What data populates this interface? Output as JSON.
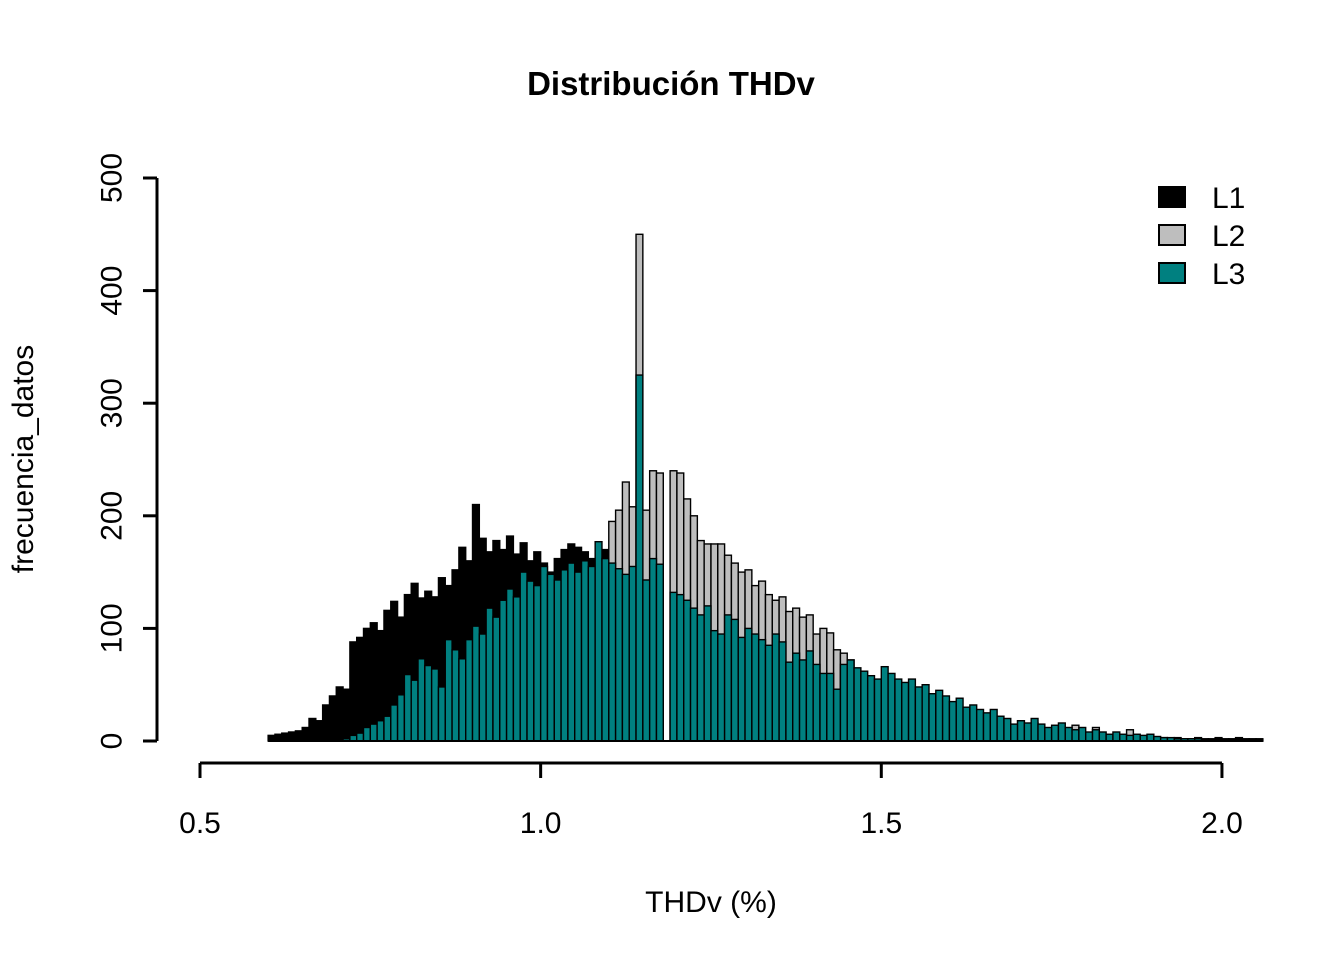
{
  "title": "Distribución THDv",
  "xlabel": "THDv (%)",
  "ylabel": "frecuencia_datos",
  "colors": {
    "l1": "#000000",
    "l2": "#BEBEBE",
    "l3": "#008080",
    "axis": "#000000",
    "background": "#FFFFFF"
  },
  "legend": [
    {
      "label": "L1",
      "color": "#000000"
    },
    {
      "label": "L2",
      "color": "#BEBEBE"
    },
    {
      "label": "L3",
      "color": "#008080"
    }
  ],
  "axes": {
    "x_ticks": [
      {
        "label": "0.5",
        "value": 0.5
      },
      {
        "label": "1.0",
        "value": 1.0
      },
      {
        "label": "1.5",
        "value": 1.5
      },
      {
        "label": "2.0",
        "value": 2.0
      }
    ],
    "y_ticks": [
      {
        "label": "0",
        "value": 0
      },
      {
        "label": "100",
        "value": 100
      },
      {
        "label": "200",
        "value": 200
      },
      {
        "label": "300",
        "value": 300
      },
      {
        "label": "400",
        "value": 400
      },
      {
        "label": "500",
        "value": 500
      }
    ]
  },
  "chart_data": {
    "type": "bar",
    "subtype": "overlaid-histogram",
    "title": "Distribución THDv",
    "xlabel": "THDv (%)",
    "ylabel": "frecuencia_datos",
    "xlim": [
      0.5,
      2.0
    ],
    "ylim": [
      0,
      500
    ],
    "grid": false,
    "legend_position": "top-right",
    "bin_start": 0.6,
    "bin_width": 0.01,
    "draw_order": [
      "L1",
      "L2",
      "L3"
    ],
    "series": [
      {
        "name": "L1",
        "color": "#000000",
        "values": [
          5,
          6,
          7,
          8,
          9,
          12,
          20,
          18,
          32,
          40,
          48,
          46,
          88,
          92,
          100,
          105,
          98,
          116,
          124,
          110,
          130,
          140,
          127,
          133,
          128,
          145,
          138,
          152,
          172,
          160,
          210,
          180,
          168,
          178,
          170,
          182,
          166,
          176,
          160,
          168,
          158,
          150,
          162,
          170,
          175,
          172,
          168,
          162,
          158,
          170,
          160,
          152,
          145,
          138,
          130,
          120,
          112,
          105,
          0,
          98,
          92,
          85,
          80,
          75,
          70,
          66,
          62,
          58,
          54,
          50,
          47,
          44,
          41,
          38,
          35,
          33,
          30,
          28,
          26,
          24,
          22,
          20,
          19,
          17,
          16,
          15,
          14,
          13,
          12,
          11,
          10,
          9,
          9,
          8,
          8,
          7,
          7,
          6,
          6,
          5,
          5,
          5,
          4,
          4,
          4,
          3,
          3,
          3,
          3,
          3,
          3,
          3,
          3,
          2,
          3,
          2,
          3,
          4,
          3,
          3,
          4,
          3,
          3,
          2,
          2,
          3,
          2,
          2,
          3,
          2,
          2,
          3,
          2,
          3,
          2,
          2,
          3,
          2,
          2,
          3,
          2,
          2,
          3,
          2,
          2,
          2
        ]
      },
      {
        "name": "L2",
        "color": "#BEBEBE",
        "values": [
          0,
          0,
          0,
          0,
          0,
          0,
          0,
          0,
          0,
          0,
          0,
          0,
          0,
          0,
          0,
          0,
          0,
          0,
          0,
          0,
          0,
          0,
          0,
          0,
          0,
          0,
          0,
          0,
          0,
          0,
          0,
          0,
          0,
          0,
          0,
          0,
          0,
          0,
          0,
          0,
          0,
          0,
          0,
          0,
          0,
          0,
          0,
          0,
          150,
          160,
          195,
          205,
          230,
          208,
          450,
          205,
          240,
          238,
          0,
          240,
          238,
          215,
          200,
          178,
          175,
          175,
          175,
          165,
          158,
          150,
          152,
          138,
          142,
          130,
          125,
          128,
          115,
          118,
          110,
          112,
          95,
          100,
          96,
          81,
          78,
          72,
          55,
          50,
          45,
          40,
          36,
          32,
          28,
          25,
          22,
          20,
          18,
          16,
          14,
          12,
          11,
          10,
          9,
          8,
          8,
          7,
          6,
          6,
          5,
          8,
          18,
          5,
          16,
          10,
          8,
          6,
          5,
          4,
          14,
          4,
          3,
          12,
          6,
          4,
          3,
          3,
          10,
          4,
          3,
          3,
          2,
          2,
          2,
          1,
          1,
          1,
          1,
          1,
          1,
          1,
          1,
          1,
          1,
          1,
          1,
          1
        ]
      },
      {
        "name": "L3",
        "color": "#008080",
        "values": [
          0,
          0,
          0,
          0,
          0,
          0,
          0,
          0,
          0,
          0,
          0,
          2,
          5,
          7,
          12,
          15,
          18,
          22,
          32,
          41,
          59,
          54,
          73,
          67,
          64,
          48,
          90,
          81,
          73,
          90,
          102,
          95,
          118,
          110,
          125,
          135,
          128,
          150,
          142,
          138,
          155,
          148,
          143,
          152,
          158,
          150,
          160,
          155,
          177,
          162,
          158,
          153,
          148,
          155,
          325,
          143,
          162,
          157,
          0,
          132,
          130,
          125,
          118,
          112,
          120,
          98,
          95,
          112,
          108,
          92,
          100,
          95,
          90,
          85,
          95,
          88,
          70,
          78,
          72,
          80,
          68,
          60,
          60,
          46,
          68,
          72,
          65,
          62,
          58,
          55,
          66,
          60,
          55,
          52,
          55,
          48,
          50,
          42,
          45,
          40,
          35,
          38,
          30,
          32,
          28,
          25,
          28,
          22,
          20,
          15,
          18,
          16,
          20,
          15,
          12,
          14,
          16,
          12,
          10,
          12,
          8,
          10,
          8,
          6,
          8,
          6,
          5,
          6,
          5,
          6,
          4,
          3,
          3,
          2,
          2,
          2,
          2,
          1,
          1,
          1,
          1,
          1,
          1,
          1,
          1,
          1
        ]
      }
    ]
  }
}
